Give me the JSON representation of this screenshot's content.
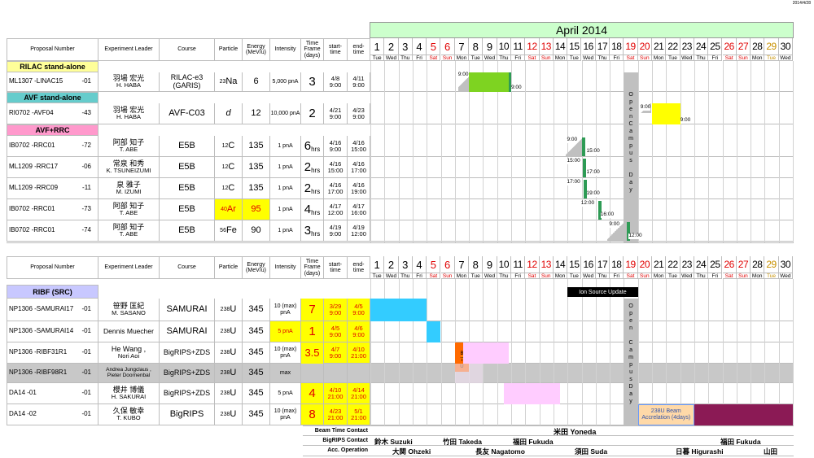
{
  "date_stamp": "2014/4/28",
  "month_title": "April 2014",
  "days": [
    "1",
    "2",
    "3",
    "4",
    "5",
    "6",
    "7",
    "8",
    "9",
    "10",
    "11",
    "12",
    "13",
    "14",
    "15",
    "16",
    "17",
    "18",
    "19",
    "20",
    "21",
    "22",
    "23",
    "24",
    "25",
    "26",
    "27",
    "28",
    "29",
    "30"
  ],
  "day_names": [
    "Tue",
    "Wed",
    "Thu",
    "Fri",
    "Sat",
    "Sun",
    "Mon",
    "Tue",
    "Wed",
    "Thu",
    "Fri",
    "Sat",
    "Sun",
    "Mon",
    "Tue",
    "Wed",
    "Thu",
    "Fri",
    "Sat",
    "Sun",
    "Mon",
    "Tue",
    "Wed",
    "Thu",
    "Fri",
    "Sat",
    "Sun",
    "Mon",
    "Tue",
    "Wed"
  ],
  "headers": {
    "proposal": "Proposal Number",
    "leader": "Experiment Leader",
    "course": "Course",
    "particle": "Particle",
    "energy": "Energy (MeV/u)",
    "intensity": "Intensity",
    "timeframe": "Time Frame (days)",
    "start": "start-time",
    "end": "end-time"
  },
  "sections": {
    "rilac": "RILAC stand-alone",
    "avf": "AVF stand-alone",
    "avfrrc": "AVF+RRC",
    "ribf": "RIBF (SRC)"
  },
  "rows_top": [
    {
      "pid": "ML1307 -LINAC15",
      "suffix": "-01",
      "leader1": "羽場 宏光",
      "leader2": "H. HABA",
      "course": "RILAC-e3 (GARIS)",
      "mass": "23",
      "elem": "Na",
      "energy": "6",
      "intensity": "5,000 pnA",
      "tf": "3",
      "tfunit": "",
      "st1": "4/8",
      "st2": "9:00",
      "en1": "4/11",
      "en2": "9:00"
    },
    {
      "pid": "RI0702 -AVF04",
      "suffix": "-43",
      "leader1": "羽場 宏光",
      "leader2": "H. HABA",
      "course": "AVF-C03",
      "mass": "",
      "elem": "d",
      "energy": "12",
      "intensity": "10,000 pnA",
      "tf": "2",
      "tfunit": "",
      "st1": "4/21",
      "st2": "9:00",
      "en1": "4/23",
      "en2": "9:00"
    },
    {
      "pid": "IB0702 -RRC01",
      "suffix": "-72",
      "leader1": "阿部 知子",
      "leader2": "T. ABE",
      "course": "E5B",
      "mass": "12",
      "elem": "C",
      "energy": "135",
      "intensity": "1 pnA",
      "tf": "6",
      "tfunit": "hrs",
      "st1": "4/16",
      "st2": "9:00",
      "en1": "4/16",
      "en2": "15:00"
    },
    {
      "pid": "ML1209 -RRC17",
      "suffix": "-06",
      "leader1": "常泉 和秀",
      "leader2": "K. TSUNEIZUMI",
      "course": "E5B",
      "mass": "12",
      "elem": "C",
      "energy": "135",
      "intensity": "1 pnA",
      "tf": "2",
      "tfunit": "hrs",
      "st1": "4/16",
      "st2": "15:00",
      "en1": "4/16",
      "en2": "17:00"
    },
    {
      "pid": "ML1209 -RRC09",
      "suffix": "-11",
      "leader1": "泉 雅子",
      "leader2": "M. IZUMI",
      "course": "E5B",
      "mass": "12",
      "elem": "C",
      "energy": "135",
      "intensity": "1 pnA",
      "tf": "2",
      "tfunit": "hrs",
      "st1": "4/16",
      "st2": "17:00",
      "en1": "4/16",
      "en2": "19:00"
    },
    {
      "pid": "IB0702 -RRC01",
      "suffix": "-73",
      "leader1": "阿部 知子",
      "leader2": "T. ABE",
      "course": "E5B",
      "mass": "40",
      "elem": "Ar",
      "energy": "95",
      "intensity": "1 pnA",
      "tf": "4",
      "tfunit": "hrs",
      "st1": "4/17",
      "st2": "12:00",
      "en1": "4/17",
      "en2": "16:00"
    },
    {
      "pid": "IB0702 -RRC01",
      "suffix": "-74",
      "leader1": "阿部 知子",
      "leader2": "T. ABE",
      "course": "E5B",
      "mass": "56",
      "elem": "Fe",
      "energy": "90",
      "intensity": "1 pnA",
      "tf": "3",
      "tfunit": "hrs",
      "st1": "4/19",
      "st2": "9:00",
      "en1": "4/19",
      "en2": "12:00"
    }
  ],
  "rows_bottom": [
    {
      "pid": "NP1306 -SAMURAI17",
      "suffix": "-01",
      "leader1": "笹野 匡紀",
      "leader2": "M. SASANO",
      "course": "SAMURAI",
      "mass": "238",
      "elem": "U",
      "energy": "345",
      "intensity": "10 (max) pnA",
      "tf": "7",
      "st1": "3/29",
      "st2": "9:00",
      "en1": "4/5",
      "en2": "9:00"
    },
    {
      "pid": "NP1306 -SAMURAI14",
      "suffix": "-01",
      "leader1": "Dennis Muecher",
      "leader2": "",
      "course": "SAMURAI",
      "mass": "238",
      "elem": "U",
      "energy": "345",
      "intensity": "5 pnA",
      "tf": "1",
      "st1": "4/5",
      "st2": "9:00",
      "en1": "4/6",
      "en2": "9:00"
    },
    {
      "pid": "NP1306 -RIBF31R1",
      "suffix": "-01",
      "leader1": "He Wang ,",
      "leader2": "Nori Aoi",
      "course": "BigRIPS+ZDS",
      "mass": "238",
      "elem": "U",
      "energy": "345",
      "intensity": "10 (max) pnA",
      "tf": "3.5",
      "st1": "4/7",
      "st2": "9:00",
      "en1": "4/10",
      "en2": "21:00"
    },
    {
      "pid": "NP1306 -RIBF98R1",
      "suffix": "-01",
      "leader1": "Andrea Jungclaus ,",
      "leader2": "Pieter Doornenbal",
      "course": "BigRIPS+ZDS",
      "mass": "238",
      "elem": "U",
      "energy": "345",
      "intensity": "max",
      "tf": "",
      "st1": "",
      "st2": "",
      "en1": "",
      "en2": ""
    },
    {
      "pid": "DA14 -01",
      "suffix": "-01",
      "leader1": "櫻井 博儀",
      "leader2": "H. SAKURAI",
      "course": "BigRIPS+ZDS",
      "mass": "238",
      "elem": "U",
      "energy": "345",
      "intensity": "5 pnA",
      "tf": "4",
      "st1": "4/10",
      "st2": "21:00",
      "en1": "4/14",
      "en2": "21:00"
    },
    {
      "pid": "DA14 -02",
      "suffix": "-01",
      "leader1": "久保 敏幸",
      "leader2": "T. KUBO",
      "course": "BigRIPS",
      "mass": "238",
      "elem": "U",
      "energy": "345",
      "intensity": "10 (max) pnA",
      "tf": "8",
      "st1": "4/23",
      "st2": "21:00",
      "en1": "5/1",
      "en2": "21:00"
    }
  ],
  "gantt_labels": {
    "open_campus": "Open Campus Day",
    "ion_source_update": "Ion Source Update",
    "btu": "BTU",
    "bt_side": "B T U",
    "beam_accel": "238U Beam Accrelation (4days)"
  },
  "gantt_times": {
    "linac_start": "9:00",
    "linac_end": "9:00",
    "avf_start": "9:00",
    "avf_end": "9:00",
    "r1s": "9:00",
    "r1e": "15:00",
    "r2s": "15:00",
    "r2e": "17:00",
    "r3s": "17:00",
    "r3e": "19:00",
    "r4s": "12:00",
    "r4e": "16:00",
    "r5s": "9:00",
    "r5e": "12:00"
  },
  "contacts": {
    "beam_time_label": "Beam Time Contact",
    "beam_time_name": "米田 Yoneda",
    "bigrips_label": "BigRIPS Contact",
    "bigrips_names": [
      "鈴木 Suzuki",
      "竹田 Takeda",
      "福田 Fukuda",
      "福田 Fukuda"
    ],
    "acc_label": "Acc. Operation",
    "acc_names": [
      "大関 Ohzeki",
      "長友 Nagatomo",
      "須田 Suda",
      "日暮 Higurashi",
      "山田"
    ]
  },
  "colors": {
    "green_bar": "#7ed321",
    "dark_green": "#2e9b55",
    "yellow": "#ffff00",
    "cyan": "#33ccff",
    "pink_light": "#ffccff",
    "maroon": "#8b1a55",
    "gray": "#c0c0c0",
    "orange": "#ff6a00",
    "peach": "#ffd9a8",
    "month_bg": "#ccffcc"
  }
}
